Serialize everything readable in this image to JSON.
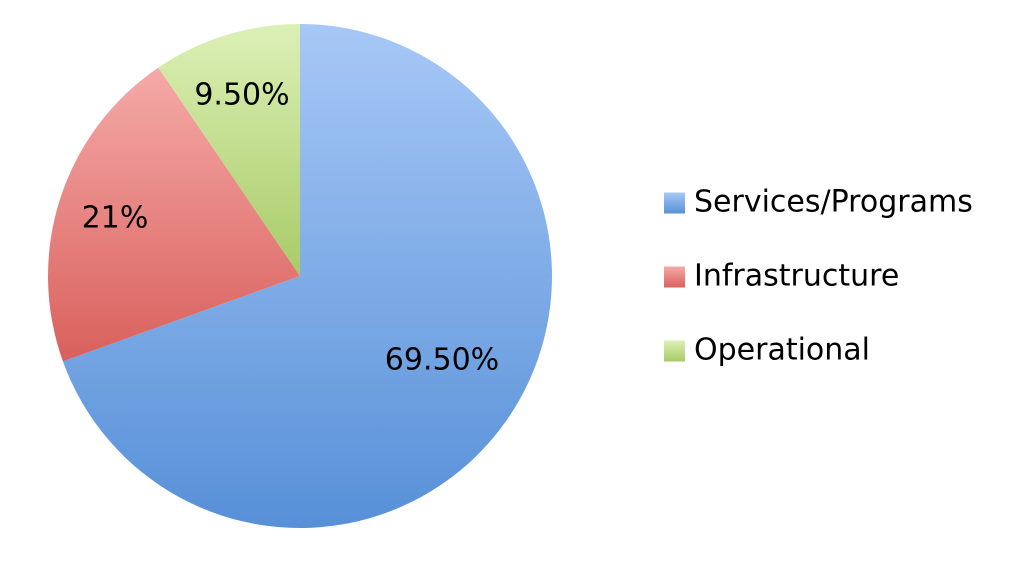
{
  "chart_data": {
    "type": "pie",
    "slices": [
      {
        "name": "Services/Programs",
        "value": 69.5,
        "label": "69.50%",
        "color": "#6fa2e3",
        "color_light": "#a7c8f6",
        "color_dark": "#5790d8"
      },
      {
        "name": "Infrastructure",
        "value": 21,
        "label": "21%",
        "color": "#e37474",
        "color_light": "#f5aaa8",
        "color_dark": "#d9605c"
      },
      {
        "name": "Operational",
        "value": 9.5,
        "label": "9.50%",
        "color": "#bedc85",
        "color_light": "#dcf0b6",
        "color_dark": "#a8cb67"
      }
    ],
    "start_angle": "12 o'clock",
    "direction": "clockwise",
    "legend_position": "right"
  }
}
